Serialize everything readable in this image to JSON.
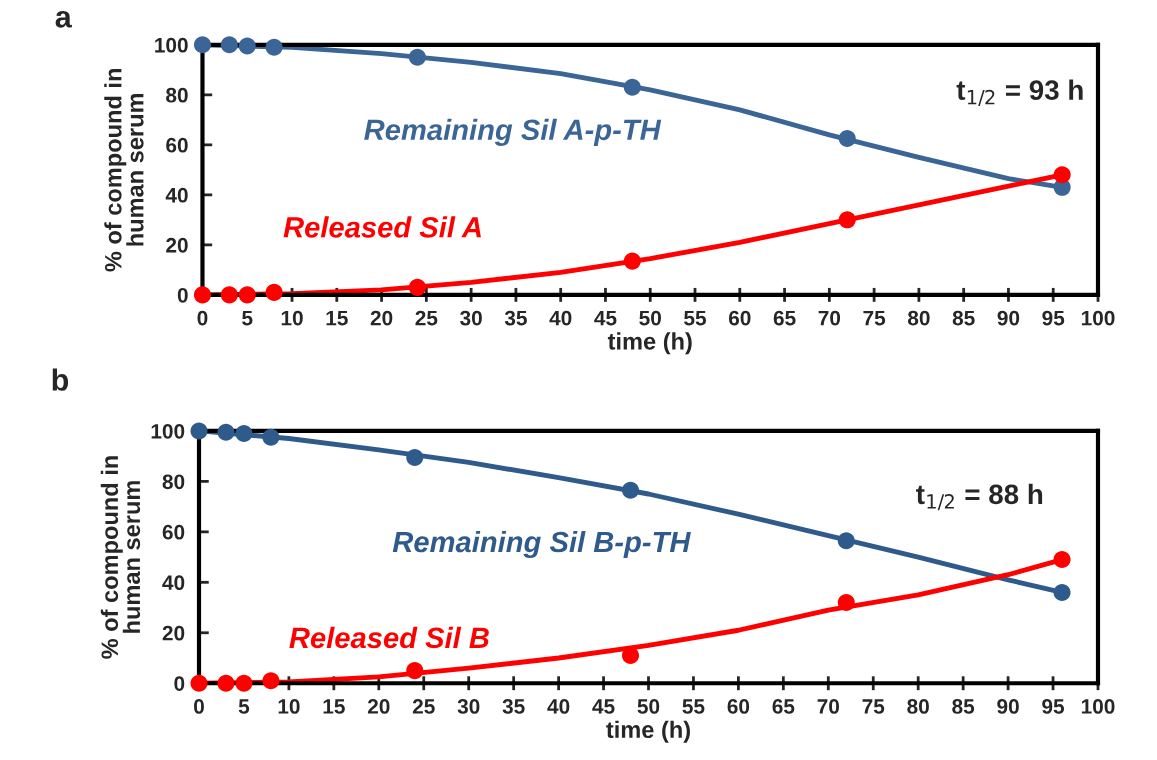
{
  "chart_data": [
    {
      "type": "scatter",
      "xlabel": "time (h)",
      "ylabel": "% of compound in\nhuman serum",
      "xlim": [
        0,
        100
      ],
      "ylim": [
        0,
        100
      ],
      "xticks": [
        0,
        5,
        10,
        15,
        20,
        25,
        30,
        35,
        40,
        45,
        50,
        55,
        60,
        65,
        70,
        75,
        80,
        85,
        90,
        95,
        100
      ],
      "yticks": [
        0,
        20,
        40,
        60,
        80,
        100
      ],
      "grid": false,
      "legend": false,
      "marker": "circle",
      "annotations": [
        "a",
        "t$_{1/2}$ = 93 h"
      ],
      "series": [
        {
          "type": "line",
          "marker": "none",
          "color": "#3a6596",
          "x": [
            0,
            10,
            20,
            30,
            40,
            50,
            60,
            70,
            80,
            90,
            96
          ],
          "values": [
            100,
            99,
            96.5,
            93,
            88.5,
            82,
            74,
            64,
            55,
            46.5,
            43
          ]
        },
        {
          "type": "line",
          "marker": "none",
          "color": "#ff0000",
          "x": [
            0,
            10,
            20,
            30,
            40,
            50,
            60,
            70,
            80,
            90,
            96
          ],
          "values": [
            0,
            0.5,
            2,
            5,
            9,
            14.5,
            21,
            28.5,
            36,
            43.5,
            48
          ]
        },
        {
          "name": "Remaining Sil A-p-TH",
          "color": "#3a6596",
          "x": [
            0,
            3,
            5,
            8,
            24,
            48,
            72,
            96
          ],
          "values": [
            100,
            100,
            99.5,
            99,
            95,
            83,
            62.5,
            43
          ]
        },
        {
          "name": "Released Sil A",
          "color": "#ff0000",
          "x": [
            0,
            3,
            5,
            8,
            24,
            48,
            72,
            96
          ],
          "values": [
            0,
            0,
            0,
            1,
            3,
            13.5,
            30,
            48
          ]
        }
      ]
    },
    {
      "type": "scatter",
      "xlabel": "time (h)",
      "ylabel": "% of compound in\nhuman serum",
      "xlim": [
        0,
        100
      ],
      "ylim": [
        0,
        100
      ],
      "xticks": [
        0,
        5,
        10,
        15,
        20,
        25,
        30,
        35,
        40,
        45,
        50,
        55,
        60,
        65,
        70,
        75,
        80,
        85,
        90,
        95,
        100
      ],
      "yticks": [
        0,
        20,
        40,
        60,
        80,
        100
      ],
      "grid": false,
      "legend": false,
      "marker": "circle",
      "annotations": [
        "b",
        "t$_{1/2}$ = 88 h"
      ],
      "series": [
        {
          "type": "line",
          "marker": "none",
          "color": "#2f5a8c",
          "x": [
            0,
            10,
            20,
            30,
            40,
            50,
            60,
            70,
            80,
            90,
            96
          ],
          "values": [
            100,
            97,
            92.5,
            87.5,
            81.5,
            75,
            67,
            58.5,
            50,
            41,
            36
          ]
        },
        {
          "type": "line",
          "marker": "none",
          "color": "#ff0000",
          "x": [
            0,
            10,
            20,
            30,
            40,
            50,
            60,
            70,
            80,
            90,
            96
          ],
          "values": [
            0,
            0.5,
            2.5,
            6,
            10,
            15,
            21,
            29,
            35,
            43,
            49
          ]
        },
        {
          "name": "Remaining Sil B-p-TH",
          "color": "#2f5a8c",
          "x": [
            0,
            3,
            5,
            8,
            24,
            48,
            72,
            96
          ],
          "values": [
            100,
            99.5,
            99,
            97.5,
            89.5,
            76.5,
            56.5,
            36
          ]
        },
        {
          "name": "Released Sil B",
          "color": "#ff0000",
          "x": [
            0,
            3,
            5,
            8,
            24,
            48,
            72,
            96
          ],
          "values": [
            0,
            0,
            0,
            1,
            5,
            11,
            32,
            49
          ]
        }
      ]
    }
  ]
}
